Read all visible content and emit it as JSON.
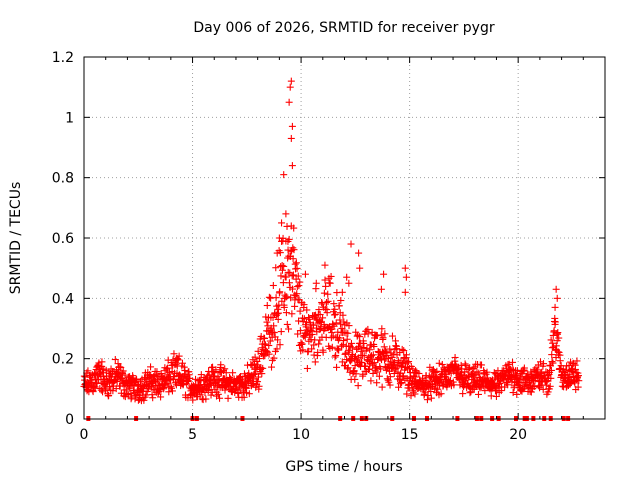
{
  "chart_data": {
    "type": "scatter",
    "title": "Day 006 of 2026, SRMTID for receiver pygr",
    "xlabel": "GPS time / hours",
    "ylabel": "SRMTID / TECUs",
    "xlim": [
      0,
      24
    ],
    "ylim": [
      0,
      1.2
    ],
    "x_ticks": [
      0,
      5,
      10,
      15,
      20
    ],
    "x_tick_labels": [
      "0",
      "5",
      "10",
      "15",
      "20"
    ],
    "y_ticks": [
      0,
      0.2,
      0.4,
      0.6,
      0.8,
      1.0,
      1.2
    ],
    "y_tick_labels": [
      "0",
      "0.2",
      "0.4",
      "0.6",
      "0.8",
      "1",
      "1.2"
    ],
    "grid": true,
    "marker": "+",
    "series": [
      {
        "name": "SRMTID",
        "color": "#ff0000",
        "envelope": {
          "x": [
            0.0,
            0.5,
            0.7,
            1.0,
            1.5,
            2.0,
            2.5,
            3.0,
            3.5,
            4.0,
            4.3,
            4.6,
            5.0,
            5.3,
            5.6,
            6.0,
            6.5,
            7.0,
            7.5,
            8.0,
            8.3,
            8.6,
            8.9,
            9.2,
            9.5,
            9.8,
            10.1,
            10.5,
            10.9,
            11.3,
            11.7,
            12.1,
            12.4,
            12.8,
            13.2,
            13.6,
            14.0,
            14.4,
            14.8,
            15.2,
            15.6,
            16.0,
            16.5,
            17.0,
            17.4,
            17.8,
            18.2,
            18.6,
            19.0,
            19.5,
            19.8,
            20.2,
            20.6,
            21.0,
            21.4,
            21.7,
            22.0,
            22.4,
            22.8
          ],
          "base": [
            0.11,
            0.13,
            0.15,
            0.12,
            0.14,
            0.11,
            0.1,
            0.12,
            0.12,
            0.14,
            0.15,
            0.13,
            0.1,
            0.11,
            0.12,
            0.13,
            0.12,
            0.11,
            0.12,
            0.16,
            0.25,
            0.3,
            0.38,
            0.45,
            0.52,
            0.4,
            0.28,
            0.3,
            0.33,
            0.34,
            0.3,
            0.24,
            0.2,
            0.2,
            0.22,
            0.21,
            0.2,
            0.18,
            0.16,
            0.12,
            0.11,
            0.12,
            0.13,
            0.15,
            0.14,
            0.12,
            0.13,
            0.12,
            0.11,
            0.14,
            0.15,
            0.12,
            0.13,
            0.14,
            0.13,
            0.3,
            0.14,
            0.15,
            0.14
          ],
          "spread": [
            0.05,
            0.06,
            0.07,
            0.06,
            0.07,
            0.05,
            0.05,
            0.06,
            0.06,
            0.07,
            0.08,
            0.07,
            0.05,
            0.05,
            0.06,
            0.06,
            0.06,
            0.05,
            0.06,
            0.08,
            0.12,
            0.15,
            0.18,
            0.22,
            0.3,
            0.2,
            0.12,
            0.13,
            0.15,
            0.16,
            0.15,
            0.12,
            0.1,
            0.1,
            0.12,
            0.12,
            0.11,
            0.1,
            0.08,
            0.05,
            0.05,
            0.06,
            0.06,
            0.07,
            0.07,
            0.06,
            0.06,
            0.06,
            0.05,
            0.06,
            0.07,
            0.06,
            0.06,
            0.06,
            0.06,
            0.1,
            0.06,
            0.06,
            0.06
          ]
        },
        "outliers": [
          [
            9.55,
            1.12
          ],
          [
            9.5,
            1.1
          ],
          [
            9.45,
            1.05
          ],
          [
            9.6,
            0.97
          ],
          [
            9.55,
            0.93
          ],
          [
            9.6,
            0.84
          ],
          [
            9.2,
            0.81
          ],
          [
            9.3,
            0.68
          ],
          [
            9.1,
            0.65
          ],
          [
            9.0,
            0.6
          ],
          [
            8.9,
            0.55
          ],
          [
            12.3,
            0.58
          ],
          [
            12.65,
            0.55
          ],
          [
            12.7,
            0.5
          ],
          [
            13.8,
            0.48
          ],
          [
            13.7,
            0.43
          ],
          [
            14.8,
            0.5
          ],
          [
            14.85,
            0.47
          ],
          [
            14.8,
            0.42
          ],
          [
            12.1,
            0.47
          ],
          [
            12.2,
            0.45
          ],
          [
            21.75,
            0.43
          ],
          [
            21.8,
            0.4
          ],
          [
            21.7,
            0.37
          ],
          [
            9.3,
            0.59
          ],
          [
            9.4,
            0.56
          ],
          [
            10.2,
            0.48
          ],
          [
            11.1,
            0.51
          ],
          [
            10.7,
            0.45
          ],
          [
            11.9,
            0.42
          ]
        ],
        "zero_points_x": [
          0.2,
          2.4,
          5.0,
          5.2,
          7.3,
          11.8,
          12.4,
          12.8,
          13.0,
          14.2,
          15.2,
          15.8,
          17.2,
          18.1,
          18.3,
          18.8,
          19.1,
          19.9,
          20.3,
          20.4,
          20.7,
          21.2,
          21.5,
          22.1,
          22.3
        ]
      }
    ]
  }
}
